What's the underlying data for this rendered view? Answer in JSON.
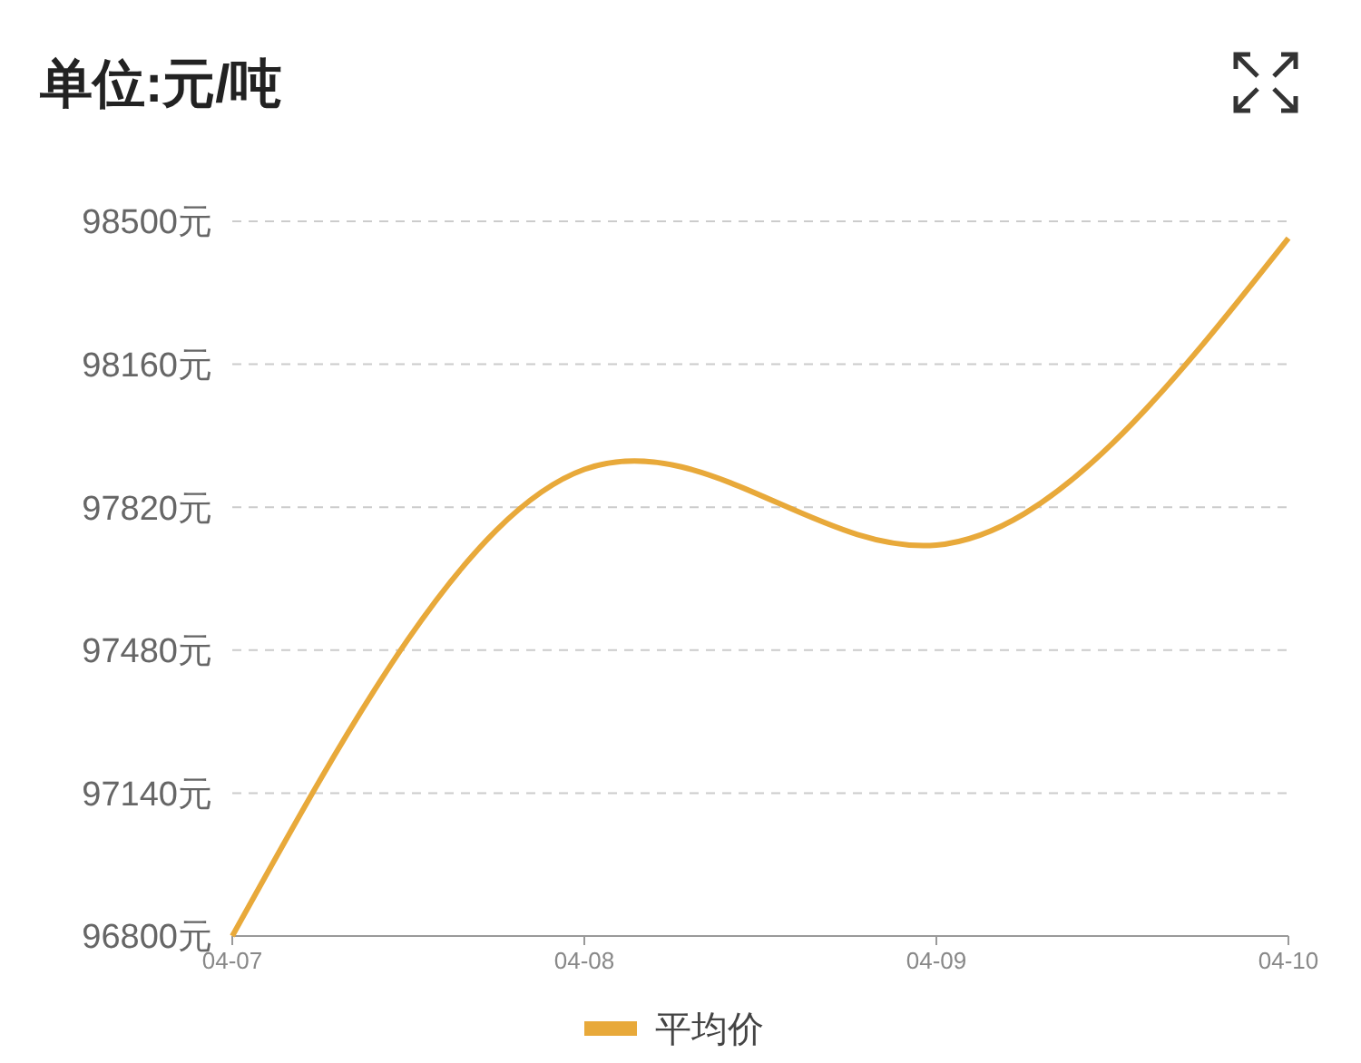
{
  "chart_data": {
    "type": "line",
    "title": "单位:元/吨",
    "categories": [
      "04-07",
      "04-08",
      "04-09",
      "04-10"
    ],
    "series": [
      {
        "name": "平均价",
        "color": "#e8a93a",
        "values": [
          96800,
          97910,
          97730,
          98460
        ]
      }
    ],
    "ylim": [
      96800,
      98500
    ],
    "yticks": [
      {
        "value": 96800,
        "label": "96800元"
      },
      {
        "value": 97140,
        "label": "97140元"
      },
      {
        "value": 97480,
        "label": "97480元"
      },
      {
        "value": 97820,
        "label": "97820元"
      },
      {
        "value": 98160,
        "label": "98160元"
      },
      {
        "value": 98500,
        "label": "98500元"
      }
    ],
    "grid": "y",
    "legend": "bottom",
    "marker": "none",
    "line_style": "solid"
  }
}
